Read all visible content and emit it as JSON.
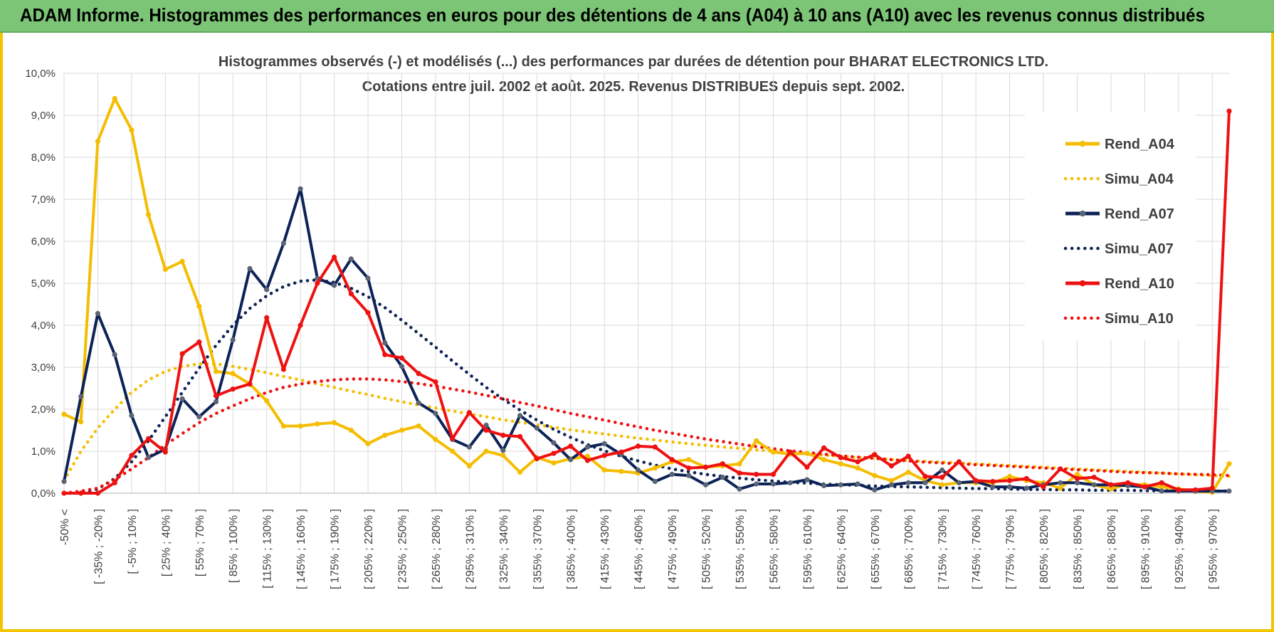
{
  "header": {
    "title": "ADAM Informe. Histogrammes des performances en euros pour des détentions de 4 ans (A04) à 10 ans (A10) avec les revenus connus distribués"
  },
  "colors": {
    "header_bg": "#7cc576",
    "frame": "#f5c400",
    "a04": "#f5bd02",
    "a07": "#0d2357",
    "a10": "#ee1111",
    "grid": "#d9d9d9"
  },
  "chart_data": {
    "type": "line",
    "title_lines": [
      "Histogrammes observés (-) et modélisés (...) des performances par durées de détention pour BHARAT ELECTRONICS LTD.",
      "Cotations entre juil. 2002 et août. 2025. Revenus DISTRIBUES depuis sept. 2002."
    ],
    "ylim": [
      0,
      10
    ],
    "y_ticks": [
      "0,0%",
      "1,0%",
      "2,0%",
      "3,0%",
      "4,0%",
      "5,0%",
      "6,0%",
      "7,0%",
      "8,0%",
      "9,0%",
      "10,0%"
    ],
    "grid": true,
    "legend_position": "right",
    "n_points": 70,
    "x_tick_labels": [
      "-50% <",
      "[ -35% ; -20% ]",
      "[ -5% ; 10% ]",
      "[ 25% ; 40% ]",
      "[ 55% ; 70% ]",
      "[ 85% ; 100% ]",
      "[ 115% ; 130% ]",
      "[ 145% ; 160% ]",
      "[ 175% ; 190% ]",
      "[ 205% ; 220% ]",
      "[ 235% ; 250% ]",
      "[ 265% ; 280% ]",
      "[ 295% ; 310% ]",
      "[ 325% ; 340% ]",
      "[ 355% ; 370% ]",
      "[ 385% ; 400% ]",
      "[ 415% ; 430% ]",
      "[ 445% ; 460% ]",
      "[ 475% ; 490% ]",
      "[ 505% ; 520% ]",
      "[ 535% ; 550% ]",
      "[ 565% ; 580% ]",
      "[ 595% ; 610% ]",
      "[ 625% ; 640% ]",
      "[ 655% ; 670% ]",
      "[ 685% ; 700% ]",
      "[ 715% ; 730% ]",
      "[ 745% ; 760% ]",
      "[ 775% ; 790% ]",
      "[ 805% ; 820% ]",
      "[ 835% ; 850% ]",
      "[ 865% ; 880% ]",
      "[ 895% ; 910% ]",
      "[ 925% ; 940% ]",
      "[ 955% ; 970% ]"
    ],
    "series": [
      {
        "name": "Rend_A04",
        "kind": "observed",
        "color": "#f5bd02",
        "values": [
          1.88,
          1.7,
          8.38,
          9.4,
          8.65,
          6.63,
          5.33,
          5.52,
          4.45,
          2.9,
          2.85,
          2.6,
          2.2,
          1.6,
          1.6,
          1.65,
          1.68,
          1.5,
          1.18,
          1.38,
          1.5,
          1.6,
          1.28,
          1.0,
          0.65,
          1.0,
          0.9,
          0.5,
          0.85,
          0.72,
          0.82,
          0.88,
          0.55,
          0.52,
          0.48,
          0.6,
          0.75,
          0.8,
          0.62,
          0.65,
          0.7,
          1.25,
          0.98,
          0.93,
          0.95,
          0.8,
          0.7,
          0.6,
          0.42,
          0.3,
          0.5,
          0.3,
          0.2,
          0.25,
          0.25,
          0.25,
          0.4,
          0.3,
          0.25,
          0.12,
          0.45,
          0.2,
          0.1,
          0.22,
          0.2,
          0.15,
          0.1,
          0.05,
          0.02,
          0.7
        ]
      },
      {
        "name": "Simu_A04",
        "kind": "model",
        "color": "#f5bd02",
        "values": [
          0.3,
          1.0,
          1.55,
          2.0,
          2.4,
          2.7,
          2.9,
          3.02,
          3.08,
          3.08,
          3.02,
          2.95,
          2.87,
          2.78,
          2.7,
          2.6,
          2.52,
          2.43,
          2.35,
          2.26,
          2.18,
          2.1,
          2.03,
          1.96,
          1.89,
          1.82,
          1.75,
          1.69,
          1.63,
          1.57,
          1.51,
          1.46,
          1.41,
          1.36,
          1.31,
          1.27,
          1.22,
          1.18,
          1.14,
          1.1,
          1.07,
          1.03,
          1.0,
          0.97,
          0.94,
          0.91,
          0.88,
          0.85,
          0.83,
          0.8,
          0.78,
          0.76,
          0.74,
          0.72,
          0.7,
          0.68,
          0.66,
          0.64,
          0.62,
          0.6,
          0.58,
          0.56,
          0.54,
          0.52,
          0.5,
          0.48,
          0.46,
          0.44,
          0.42,
          0.4
        ]
      },
      {
        "name": "Rend_A07",
        "kind": "observed",
        "color": "#0d2357",
        "values": [
          0.28,
          2.3,
          4.28,
          3.3,
          1.85,
          0.85,
          1.05,
          2.25,
          1.82,
          2.18,
          3.65,
          5.35,
          4.85,
          5.95,
          7.25,
          5.12,
          4.95,
          5.58,
          5.12,
          3.58,
          3.02,
          2.15,
          1.9,
          1.28,
          1.1,
          1.62,
          1.02,
          1.85,
          1.55,
          1.2,
          0.8,
          1.1,
          1.18,
          0.92,
          0.55,
          0.28,
          0.45,
          0.42,
          0.2,
          0.38,
          0.1,
          0.22,
          0.22,
          0.25,
          0.32,
          0.18,
          0.2,
          0.22,
          0.08,
          0.2,
          0.25,
          0.25,
          0.55,
          0.25,
          0.28,
          0.15,
          0.15,
          0.12,
          0.2,
          0.25,
          0.25,
          0.2,
          0.2,
          0.18,
          0.15,
          0.05,
          0.05,
          0.05,
          0.05,
          0.05
        ]
      },
      {
        "name": "Simu_A07",
        "kind": "model",
        "color": "#0d2357",
        "values": [
          0.0,
          0.02,
          0.1,
          0.35,
          0.75,
          1.25,
          1.82,
          2.4,
          2.98,
          3.52,
          4.0,
          4.4,
          4.7,
          4.92,
          5.05,
          5.08,
          5.02,
          4.88,
          4.68,
          4.42,
          4.12,
          3.8,
          3.48,
          3.15,
          2.83,
          2.52,
          2.24,
          1.98,
          1.74,
          1.52,
          1.33,
          1.16,
          1.01,
          0.88,
          0.77,
          0.67,
          0.58,
          0.51,
          0.45,
          0.4,
          0.36,
          0.32,
          0.29,
          0.26,
          0.24,
          0.22,
          0.2,
          0.19,
          0.17,
          0.16,
          0.15,
          0.14,
          0.13,
          0.12,
          0.11,
          0.11,
          0.1,
          0.09,
          0.09,
          0.08,
          0.08,
          0.07,
          0.07,
          0.07,
          0.06,
          0.06,
          0.06,
          0.05,
          0.05,
          0.05
        ]
      },
      {
        "name": "Rend_A10",
        "kind": "observed",
        "color": "#ee1111",
        "values": [
          0.0,
          0.0,
          0.0,
          0.25,
          0.9,
          1.3,
          0.98,
          3.32,
          3.6,
          2.32,
          2.48,
          2.6,
          4.18,
          2.95,
          4.0,
          5.0,
          5.62,
          4.75,
          4.3,
          3.3,
          3.22,
          2.85,
          2.65,
          1.3,
          1.92,
          1.5,
          1.38,
          1.35,
          0.82,
          0.95,
          1.12,
          0.78,
          0.9,
          0.98,
          1.12,
          1.1,
          0.8,
          0.6,
          0.62,
          0.7,
          0.48,
          0.45,
          0.45,
          0.98,
          0.62,
          1.08,
          0.85,
          0.75,
          0.92,
          0.65,
          0.88,
          0.4,
          0.38,
          0.75,
          0.3,
          0.28,
          0.3,
          0.35,
          0.15,
          0.58,
          0.35,
          0.38,
          0.2,
          0.25,
          0.15,
          0.25,
          0.08,
          0.08,
          0.12,
          9.1
        ]
      },
      {
        "name": "Simu_A10",
        "kind": "model",
        "color": "#ee1111",
        "values": [
          0.0,
          0.05,
          0.12,
          0.32,
          0.58,
          0.85,
          1.15,
          1.42,
          1.68,
          1.9,
          2.08,
          2.25,
          2.4,
          2.52,
          2.6,
          2.66,
          2.7,
          2.72,
          2.72,
          2.7,
          2.66,
          2.61,
          2.55,
          2.48,
          2.41,
          2.33,
          2.25,
          2.16,
          2.08,
          1.99,
          1.9,
          1.82,
          1.74,
          1.66,
          1.58,
          1.5,
          1.43,
          1.36,
          1.29,
          1.23,
          1.17,
          1.11,
          1.06,
          1.01,
          0.97,
          0.93,
          0.89,
          0.86,
          0.83,
          0.8,
          0.77,
          0.74,
          0.72,
          0.7,
          0.68,
          0.66,
          0.64,
          0.62,
          0.6,
          0.58,
          0.56,
          0.54,
          0.52,
          0.5,
          0.49,
          0.48,
          0.46,
          0.45,
          0.44,
          0.42
        ]
      }
    ]
  }
}
